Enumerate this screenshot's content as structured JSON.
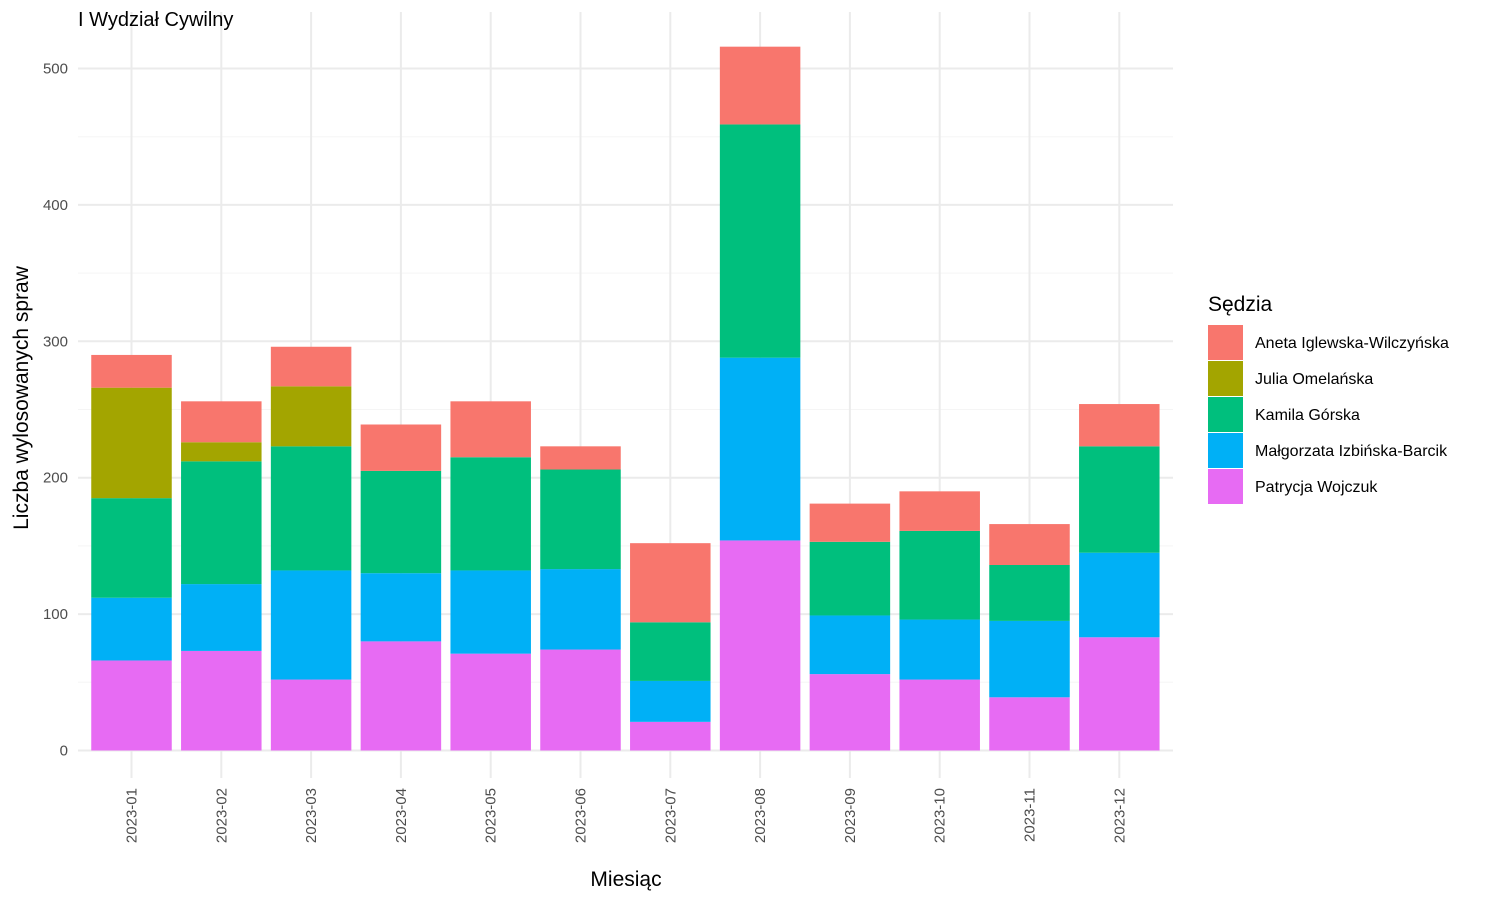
{
  "chart_data": {
    "type": "bar",
    "stacked": true,
    "title": "I Wydział Cywilny",
    "xlabel": "Miesiąc",
    "ylabel": "Liczba wylosowanych spraw",
    "ylim": [
      0,
      520
    ],
    "yticks": [
      0,
      100,
      200,
      300,
      400,
      500
    ],
    "grid": true,
    "legend": {
      "title": "Sędzia",
      "position": "right"
    },
    "categories": [
      "2023-01",
      "2023-02",
      "2023-03",
      "2023-04",
      "2023-05",
      "2023-06",
      "2023-07",
      "2023-08",
      "2023-09",
      "2023-10",
      "2023-11",
      "2023-12"
    ],
    "series": [
      {
        "name": "Patrycja Wojczuk",
        "color": "#E76BF3",
        "values": [
          66,
          73,
          52,
          80,
          71,
          74,
          21,
          154,
          56,
          52,
          39,
          83
        ]
      },
      {
        "name": "Małgorzata Izbińska-Barcik",
        "color": "#00B0F6",
        "values": [
          46,
          49,
          80,
          50,
          61,
          59,
          30,
          134,
          43,
          44,
          56,
          62
        ]
      },
      {
        "name": "Kamila Górska",
        "color": "#00BF7D",
        "values": [
          73,
          90,
          91,
          75,
          83,
          73,
          43,
          171,
          54,
          65,
          41,
          78
        ]
      },
      {
        "name": "Julia Omelańska",
        "color": "#A3A500",
        "values": [
          81,
          14,
          44,
          0,
          0,
          0,
          0,
          0,
          0,
          0,
          0,
          0
        ]
      },
      {
        "name": "Aneta Iglewska-Wilczyńska",
        "color": "#F8766D",
        "values": [
          24,
          30,
          29,
          34,
          41,
          17,
          58,
          57,
          28,
          29,
          30,
          31
        ]
      }
    ],
    "legend_order": [
      "Aneta Iglewska-Wilczyńska",
      "Julia Omelańska",
      "Kamila Górska",
      "Małgorzata Izbińska-Barcik",
      "Patrycja Wojczuk"
    ]
  }
}
